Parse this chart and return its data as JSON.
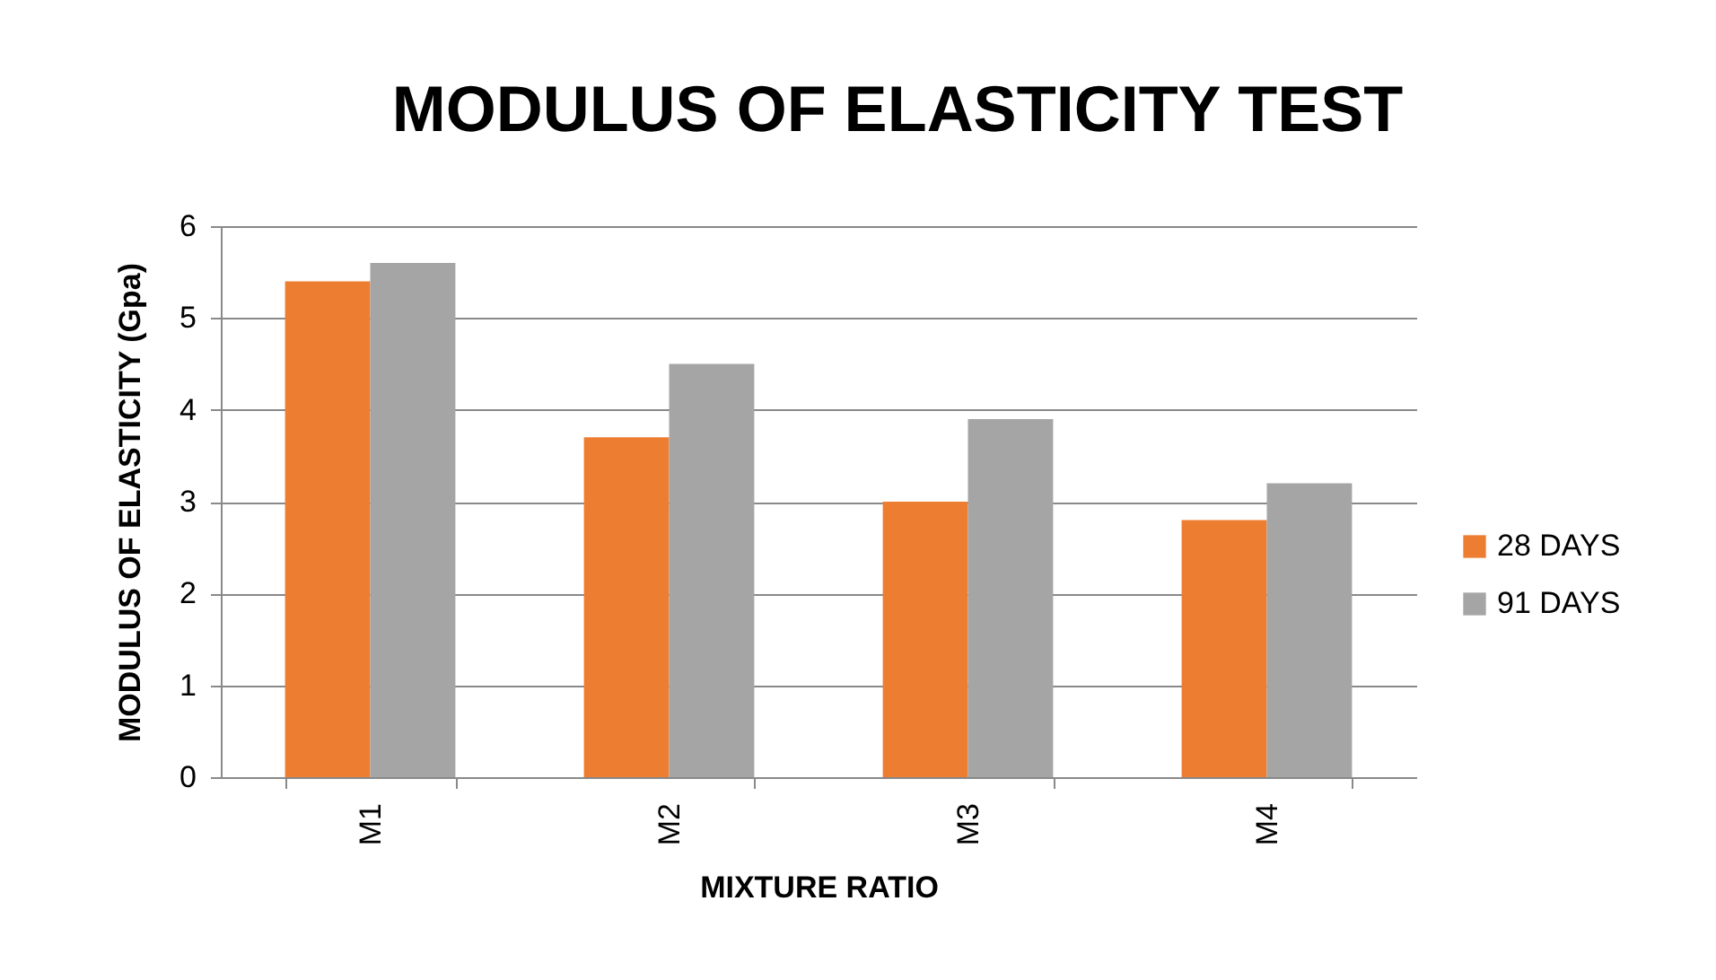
{
  "chart_data": {
    "type": "bar",
    "title": "MODULUS OF ELASTICITY TEST",
    "xlabel": "MIXTURE RATIO",
    "ylabel": "MODULUS OF ELASTICITY  (Gpa)",
    "categories": [
      "M1",
      "M2",
      "M3",
      "M4"
    ],
    "series": [
      {
        "name": "28 DAYS",
        "color": "#ed7d31",
        "values": [
          5.4,
          3.7,
          3.0,
          2.8
        ]
      },
      {
        "name": "91 DAYS",
        "color": "#a5a5a5",
        "values": [
          5.6,
          4.5,
          3.9,
          3.2
        ]
      }
    ],
    "ylim": [
      0,
      6
    ],
    "yticks": [
      0,
      1,
      2,
      3,
      4,
      5,
      6
    ],
    "grid": "y",
    "legend": "right"
  }
}
